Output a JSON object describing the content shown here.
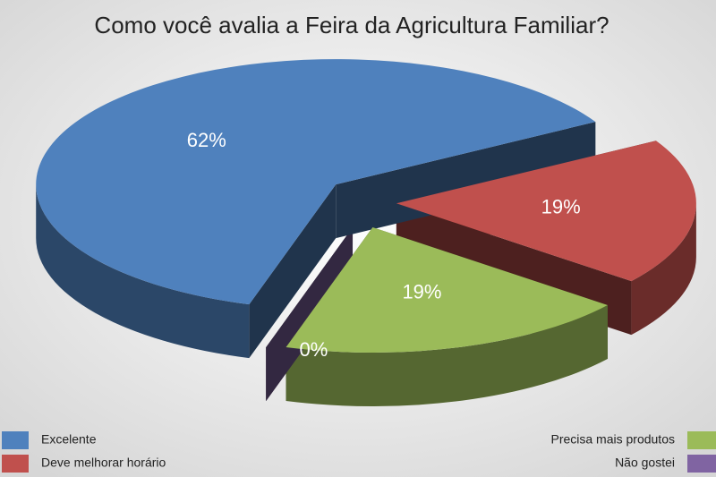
{
  "chart_data": {
    "type": "pie",
    "title": "Como você avalia a Feira da Agricultura Familiar?",
    "categories": [
      "Excelente",
      "Deve melhorar horário",
      "Precisa mais produtos",
      "Não gostei"
    ],
    "values": [
      62,
      19,
      19,
      0
    ],
    "value_labels": [
      "62%",
      "19%",
      "19%",
      "0%"
    ],
    "colors": [
      "#4f81bd",
      "#c0504d",
      "#9bbb59",
      "#8064a2"
    ],
    "legend": "bottom"
  }
}
